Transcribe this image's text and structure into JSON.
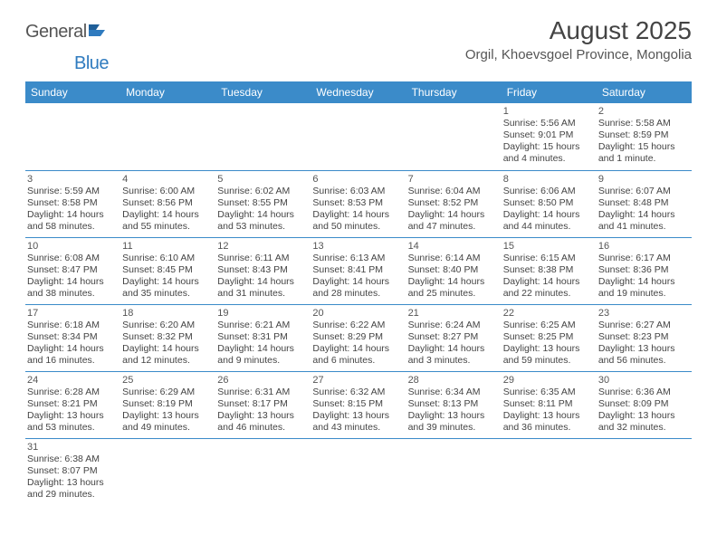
{
  "logo": {
    "word1": "General",
    "word2": "Blue"
  },
  "title": "August 2025",
  "location": "Orgil, Khoevsgoel Province, Mongolia",
  "colors": {
    "header_bg": "#3b8bc9",
    "header_text": "#ffffff",
    "border": "#3b8bc9",
    "logo_gray": "#555555",
    "logo_blue": "#2f7bbf",
    "body_text": "#444444",
    "page_bg": "#ffffff"
  },
  "weekdays": [
    "Sunday",
    "Monday",
    "Tuesday",
    "Wednesday",
    "Thursday",
    "Friday",
    "Saturday"
  ],
  "weeks": [
    [
      null,
      null,
      null,
      null,
      null,
      {
        "n": "1",
        "sunrise": "5:56 AM",
        "sunset": "9:01 PM",
        "daylight": "15 hours and 4 minutes."
      },
      {
        "n": "2",
        "sunrise": "5:58 AM",
        "sunset": "8:59 PM",
        "daylight": "15 hours and 1 minute."
      }
    ],
    [
      {
        "n": "3",
        "sunrise": "5:59 AM",
        "sunset": "8:58 PM",
        "daylight": "14 hours and 58 minutes."
      },
      {
        "n": "4",
        "sunrise": "6:00 AM",
        "sunset": "8:56 PM",
        "daylight": "14 hours and 55 minutes."
      },
      {
        "n": "5",
        "sunrise": "6:02 AM",
        "sunset": "8:55 PM",
        "daylight": "14 hours and 53 minutes."
      },
      {
        "n": "6",
        "sunrise": "6:03 AM",
        "sunset": "8:53 PM",
        "daylight": "14 hours and 50 minutes."
      },
      {
        "n": "7",
        "sunrise": "6:04 AM",
        "sunset": "8:52 PM",
        "daylight": "14 hours and 47 minutes."
      },
      {
        "n": "8",
        "sunrise": "6:06 AM",
        "sunset": "8:50 PM",
        "daylight": "14 hours and 44 minutes."
      },
      {
        "n": "9",
        "sunrise": "6:07 AM",
        "sunset": "8:48 PM",
        "daylight": "14 hours and 41 minutes."
      }
    ],
    [
      {
        "n": "10",
        "sunrise": "6:08 AM",
        "sunset": "8:47 PM",
        "daylight": "14 hours and 38 minutes."
      },
      {
        "n": "11",
        "sunrise": "6:10 AM",
        "sunset": "8:45 PM",
        "daylight": "14 hours and 35 minutes."
      },
      {
        "n": "12",
        "sunrise": "6:11 AM",
        "sunset": "8:43 PM",
        "daylight": "14 hours and 31 minutes."
      },
      {
        "n": "13",
        "sunrise": "6:13 AM",
        "sunset": "8:41 PM",
        "daylight": "14 hours and 28 minutes."
      },
      {
        "n": "14",
        "sunrise": "6:14 AM",
        "sunset": "8:40 PM",
        "daylight": "14 hours and 25 minutes."
      },
      {
        "n": "15",
        "sunrise": "6:15 AM",
        "sunset": "8:38 PM",
        "daylight": "14 hours and 22 minutes."
      },
      {
        "n": "16",
        "sunrise": "6:17 AM",
        "sunset": "8:36 PM",
        "daylight": "14 hours and 19 minutes."
      }
    ],
    [
      {
        "n": "17",
        "sunrise": "6:18 AM",
        "sunset": "8:34 PM",
        "daylight": "14 hours and 16 minutes."
      },
      {
        "n": "18",
        "sunrise": "6:20 AM",
        "sunset": "8:32 PM",
        "daylight": "14 hours and 12 minutes."
      },
      {
        "n": "19",
        "sunrise": "6:21 AM",
        "sunset": "8:31 PM",
        "daylight": "14 hours and 9 minutes."
      },
      {
        "n": "20",
        "sunrise": "6:22 AM",
        "sunset": "8:29 PM",
        "daylight": "14 hours and 6 minutes."
      },
      {
        "n": "21",
        "sunrise": "6:24 AM",
        "sunset": "8:27 PM",
        "daylight": "14 hours and 3 minutes."
      },
      {
        "n": "22",
        "sunrise": "6:25 AM",
        "sunset": "8:25 PM",
        "daylight": "13 hours and 59 minutes."
      },
      {
        "n": "23",
        "sunrise": "6:27 AM",
        "sunset": "8:23 PM",
        "daylight": "13 hours and 56 minutes."
      }
    ],
    [
      {
        "n": "24",
        "sunrise": "6:28 AM",
        "sunset": "8:21 PM",
        "daylight": "13 hours and 53 minutes."
      },
      {
        "n": "25",
        "sunrise": "6:29 AM",
        "sunset": "8:19 PM",
        "daylight": "13 hours and 49 minutes."
      },
      {
        "n": "26",
        "sunrise": "6:31 AM",
        "sunset": "8:17 PM",
        "daylight": "13 hours and 46 minutes."
      },
      {
        "n": "27",
        "sunrise": "6:32 AM",
        "sunset": "8:15 PM",
        "daylight": "13 hours and 43 minutes."
      },
      {
        "n": "28",
        "sunrise": "6:34 AM",
        "sunset": "8:13 PM",
        "daylight": "13 hours and 39 minutes."
      },
      {
        "n": "29",
        "sunrise": "6:35 AM",
        "sunset": "8:11 PM",
        "daylight": "13 hours and 36 minutes."
      },
      {
        "n": "30",
        "sunrise": "6:36 AM",
        "sunset": "8:09 PM",
        "daylight": "13 hours and 32 minutes."
      }
    ],
    [
      {
        "n": "31",
        "sunrise": "6:38 AM",
        "sunset": "8:07 PM",
        "daylight": "13 hours and 29 minutes."
      },
      null,
      null,
      null,
      null,
      null,
      null
    ]
  ],
  "labels": {
    "sunrise": "Sunrise:",
    "sunset": "Sunset:",
    "daylight": "Daylight:"
  }
}
